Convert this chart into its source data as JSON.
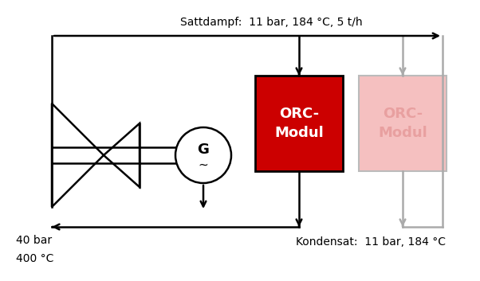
{
  "bg_color": "#ffffff",
  "top_label": "Sattdampf:  11 bar, 184 °C, 5 t/h",
  "bottom_label": "Kondensat:  11 bar, 184 °C",
  "left_label_line1": "40 bar",
  "left_label_line2": "400 °C",
  "orc1_label": "ORC-\nModul",
  "orc2_label": "ORC-\nModul",
  "orc1_color": "#cc0000",
  "orc2_color": "#f5c0c0",
  "orc1_text_color": "#ffffff",
  "orc2_text_color": "#e8a0a0",
  "arrow_color_active": "#000000",
  "arrow_color_inactive": "#aaaaaa",
  "box_edge_color": "#000000",
  "box2_edge_color": "#bbbbbb"
}
